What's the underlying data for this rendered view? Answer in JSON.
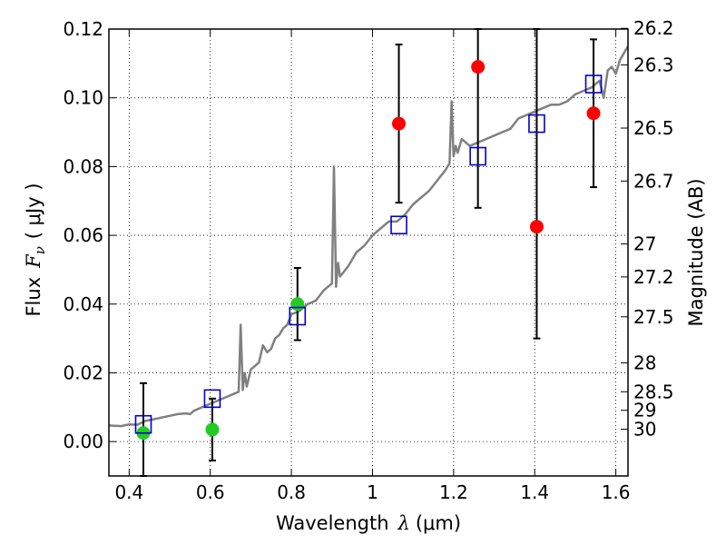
{
  "chart_data": {
    "type": "scatter",
    "title": "",
    "xlabel": "Wavelength",
    "xlabel_symbol": "λ",
    "xlabel_unit": "(μm)",
    "ylabel": "Flux",
    "ylabel_symbol": "F",
    "ylabel_sub": "ν",
    "ylabel_unit": "( μJy )",
    "y2label": "Magnitude (AB)",
    "xlim": [
      0.35,
      1.63
    ],
    "ylim": [
      -0.01,
      0.12
    ],
    "grid": true,
    "grid_style": "dotted",
    "x_ticks": [
      {
        "value": 0.4,
        "label": "0.4"
      },
      {
        "value": 0.6,
        "label": "0.6"
      },
      {
        "value": 0.8,
        "label": "0.8"
      },
      {
        "value": 1.0,
        "label": "1"
      },
      {
        "value": 1.2,
        "label": "1.2"
      },
      {
        "value": 1.4,
        "label": "1.4"
      },
      {
        "value": 1.6,
        "label": "1.6"
      }
    ],
    "y_ticks": [
      {
        "value": 0.0,
        "label": "0.00"
      },
      {
        "value": 0.02,
        "label": "0.02"
      },
      {
        "value": 0.04,
        "label": "0.04"
      },
      {
        "value": 0.06,
        "label": "0.06"
      },
      {
        "value": 0.08,
        "label": "0.08"
      },
      {
        "value": 0.1,
        "label": "0.10"
      },
      {
        "value": 0.12,
        "label": "0.12"
      }
    ],
    "y2_ticks": [
      {
        "flux": 0.1202,
        "label": "26.2"
      },
      {
        "flux": 0.1096,
        "label": "26.3"
      },
      {
        "flux": 0.0912,
        "label": "26.5"
      },
      {
        "flux": 0.0758,
        "label": "26.7"
      },
      {
        "flux": 0.0575,
        "label": "27"
      },
      {
        "flux": 0.0479,
        "label": "27.2"
      },
      {
        "flux": 0.0363,
        "label": "27.5"
      },
      {
        "flux": 0.0229,
        "label": "28"
      },
      {
        "flux": 0.0145,
        "label": "28.5"
      },
      {
        "flux": 0.0091,
        "label": "29"
      },
      {
        "flux": 0.0036,
        "label": "30"
      }
    ],
    "series": [
      {
        "kind": "line",
        "color": "#808080",
        "x": [
          0.35,
          0.38,
          0.4,
          0.42,
          0.44,
          0.46,
          0.48,
          0.5,
          0.52,
          0.54,
          0.55,
          0.56,
          0.58,
          0.6,
          0.62,
          0.64,
          0.66,
          0.67,
          0.675,
          0.68,
          0.685,
          0.69,
          0.7,
          0.71,
          0.72,
          0.73,
          0.74,
          0.75,
          0.76,
          0.77,
          0.78,
          0.79,
          0.8,
          0.82,
          0.84,
          0.86,
          0.88,
          0.9,
          0.905,
          0.91,
          0.915,
          0.92,
          0.94,
          0.96,
          0.98,
          1.0,
          1.02,
          1.04,
          1.06,
          1.08,
          1.1,
          1.12,
          1.14,
          1.16,
          1.18,
          1.19,
          1.195,
          1.2,
          1.205,
          1.21,
          1.22,
          1.24,
          1.26,
          1.28,
          1.3,
          1.32,
          1.34,
          1.36,
          1.38,
          1.4,
          1.42,
          1.44,
          1.46,
          1.48,
          1.5,
          1.52,
          1.54,
          1.56,
          1.57,
          1.58,
          1.59,
          1.6,
          1.61,
          1.62,
          1.63
        ],
        "y": [
          0.0047,
          0.0045,
          0.005,
          0.0049,
          0.006,
          0.0065,
          0.007,
          0.0075,
          0.008,
          0.0082,
          0.008,
          0.009,
          0.01,
          0.011,
          0.012,
          0.013,
          0.014,
          0.0145,
          0.034,
          0.015,
          0.02,
          0.016,
          0.021,
          0.022,
          0.023,
          0.028,
          0.026,
          0.027,
          0.03,
          0.031,
          0.033,
          0.034,
          0.037,
          0.038,
          0.04,
          0.041,
          0.044,
          0.046,
          0.08,
          0.045,
          0.052,
          0.048,
          0.051,
          0.055,
          0.057,
          0.06,
          0.062,
          0.064,
          0.064,
          0.066,
          0.069,
          0.071,
          0.073,
          0.076,
          0.079,
          0.081,
          0.099,
          0.083,
          0.086,
          0.084,
          0.088,
          0.086,
          0.087,
          0.088,
          0.089,
          0.09,
          0.091,
          0.094,
          0.095,
          0.096,
          0.097,
          0.098,
          0.098,
          0.099,
          0.101,
          0.102,
          0.103,
          0.105,
          0.1,
          0.108,
          0.109,
          0.107,
          0.111,
          0.113,
          0.115
        ]
      },
      {
        "kind": "points",
        "marker": "circle",
        "color": "#22cc22",
        "x": [
          0.435,
          0.605,
          0.815
        ],
        "y": [
          0.0025,
          0.0035,
          0.04
        ],
        "yerr_low": [
          -0.01,
          -0.0055,
          0.0295
        ],
        "yerr_high": [
          0.017,
          0.0125,
          0.0505
        ]
      },
      {
        "kind": "points",
        "marker": "circle",
        "color": "#ff0000",
        "x": [
          1.065,
          1.26,
          1.405,
          1.545
        ],
        "y": [
          0.0925,
          0.109,
          0.0625,
          0.0955
        ],
        "yerr_low": [
          0.0695,
          0.068,
          0.03,
          0.074
        ],
        "yerr_high": [
          0.1155,
          0.12,
          0.12,
          0.117
        ]
      },
      {
        "kind": "points",
        "marker": "open-square",
        "color": "#0000cc",
        "x": [
          0.435,
          0.605,
          0.815,
          1.065,
          1.26,
          1.405,
          1.545
        ],
        "y": [
          0.005,
          0.0125,
          0.0365,
          0.063,
          0.083,
          0.0925,
          0.104
        ]
      }
    ]
  }
}
